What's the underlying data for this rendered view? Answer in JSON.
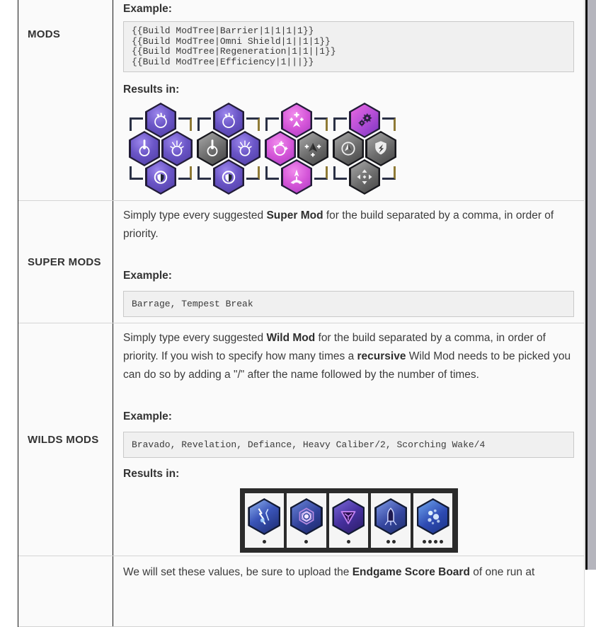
{
  "palette": {
    "active_purple": "#6a55c6",
    "active_pink": "#d455d8",
    "inactive_gray": "#6b6b6b",
    "wild_blue": "#3a54b8",
    "frame_dark": "#2b2b2b",
    "page_gutter_gray": "#b5b5bd"
  },
  "table": {
    "rows": [
      {
        "header": "MODS",
        "example_label": "Example:",
        "code_lines": [
          "{{Build ModTree|Barrier|1|1|1|1}}",
          "{{Build ModTree|Omni Shield|1||1|1}}",
          "{{Build ModTree|Regeneration|1|1||1}}",
          "{{Build ModTree|Efficiency|1|||}}"
        ],
        "results_label": "Results in:",
        "mod_trees": [
          {
            "name": "Barrier",
            "nodes": [
              {
                "glyph": "fangs",
                "state": "purple"
              },
              {
                "glyph": "beam",
                "state": "purple"
              },
              {
                "glyph": "burst",
                "state": "purple"
              },
              {
                "glyph": "shieldring",
                "state": "purple"
              }
            ]
          },
          {
            "name": "Omni Shield",
            "nodes": [
              {
                "glyph": "fangs",
                "state": "purple"
              },
              {
                "glyph": "beam",
                "state": "gray"
              },
              {
                "glyph": "burst",
                "state": "purple"
              },
              {
                "glyph": "shieldring",
                "state": "purple"
              }
            ]
          },
          {
            "name": "Regeneration",
            "nodes": [
              {
                "glyph": "plusbird",
                "state": "pink"
              },
              {
                "glyph": "ringplus",
                "state": "pink"
              },
              {
                "glyph": "birdplus",
                "state": "gray"
              },
              {
                "glyph": "phoenix",
                "state": "pink"
              }
            ]
          },
          {
            "name": "Efficiency",
            "nodes": [
              {
                "glyph": "gears",
                "state": "magenta"
              },
              {
                "glyph": "scope",
                "state": "gray"
              },
              {
                "glyph": "shieldcycle",
                "state": "gray"
              },
              {
                "glyph": "expand",
                "state": "gray"
              }
            ]
          }
        ]
      },
      {
        "header": "SUPER MODS",
        "paragraph": [
          {
            "t": "Simply type every suggested "
          },
          {
            "t": "Super Mod",
            "b": true
          },
          {
            "t": " for the build separated by a comma, in order of priority."
          }
        ],
        "example_label": "Example:",
        "code_lines": [
          "Barrage, Tempest Break"
        ]
      },
      {
        "header": "WILDS MODS",
        "paragraph": [
          {
            "t": "Simply type every suggested "
          },
          {
            "t": "Wild Mod",
            "b": true
          },
          {
            "t": " for the build separated by a comma, in order of priority. If you wish to specify how many times a "
          },
          {
            "t": "recursive",
            "b": true
          },
          {
            "t": " Wild Mod needs to be picked you can do so by adding a \"/\" after the name followed by the number of times."
          }
        ],
        "example_label": "Example:",
        "code_lines": [
          "Bravado, Revelation, Defiance, Heavy Caliber/2, Scorching Wake/4"
        ],
        "results_label": "Results in:",
        "wild_mods": [
          {
            "name": "Bravado",
            "state": "bravado",
            "glyph": "claw",
            "dots": 1
          },
          {
            "name": "Revelation",
            "state": "revelation",
            "glyph": "eye",
            "dots": 1
          },
          {
            "name": "Defiance",
            "state": "defiance",
            "glyph": "tri",
            "dots": 1
          },
          {
            "name": "Heavy Caliber",
            "state": "caliber",
            "glyph": "bullet",
            "dots": 2
          },
          {
            "name": "Scorching Wake",
            "state": "scorch",
            "glyph": "sparks",
            "dots": 4
          }
        ]
      },
      {
        "header": "",
        "paragraph": [
          {
            "t": "We will set these values, be sure to upload the "
          },
          {
            "t": "Endgame Score Board",
            "b": true
          },
          {
            "t": " of one run at"
          }
        ]
      }
    ]
  }
}
